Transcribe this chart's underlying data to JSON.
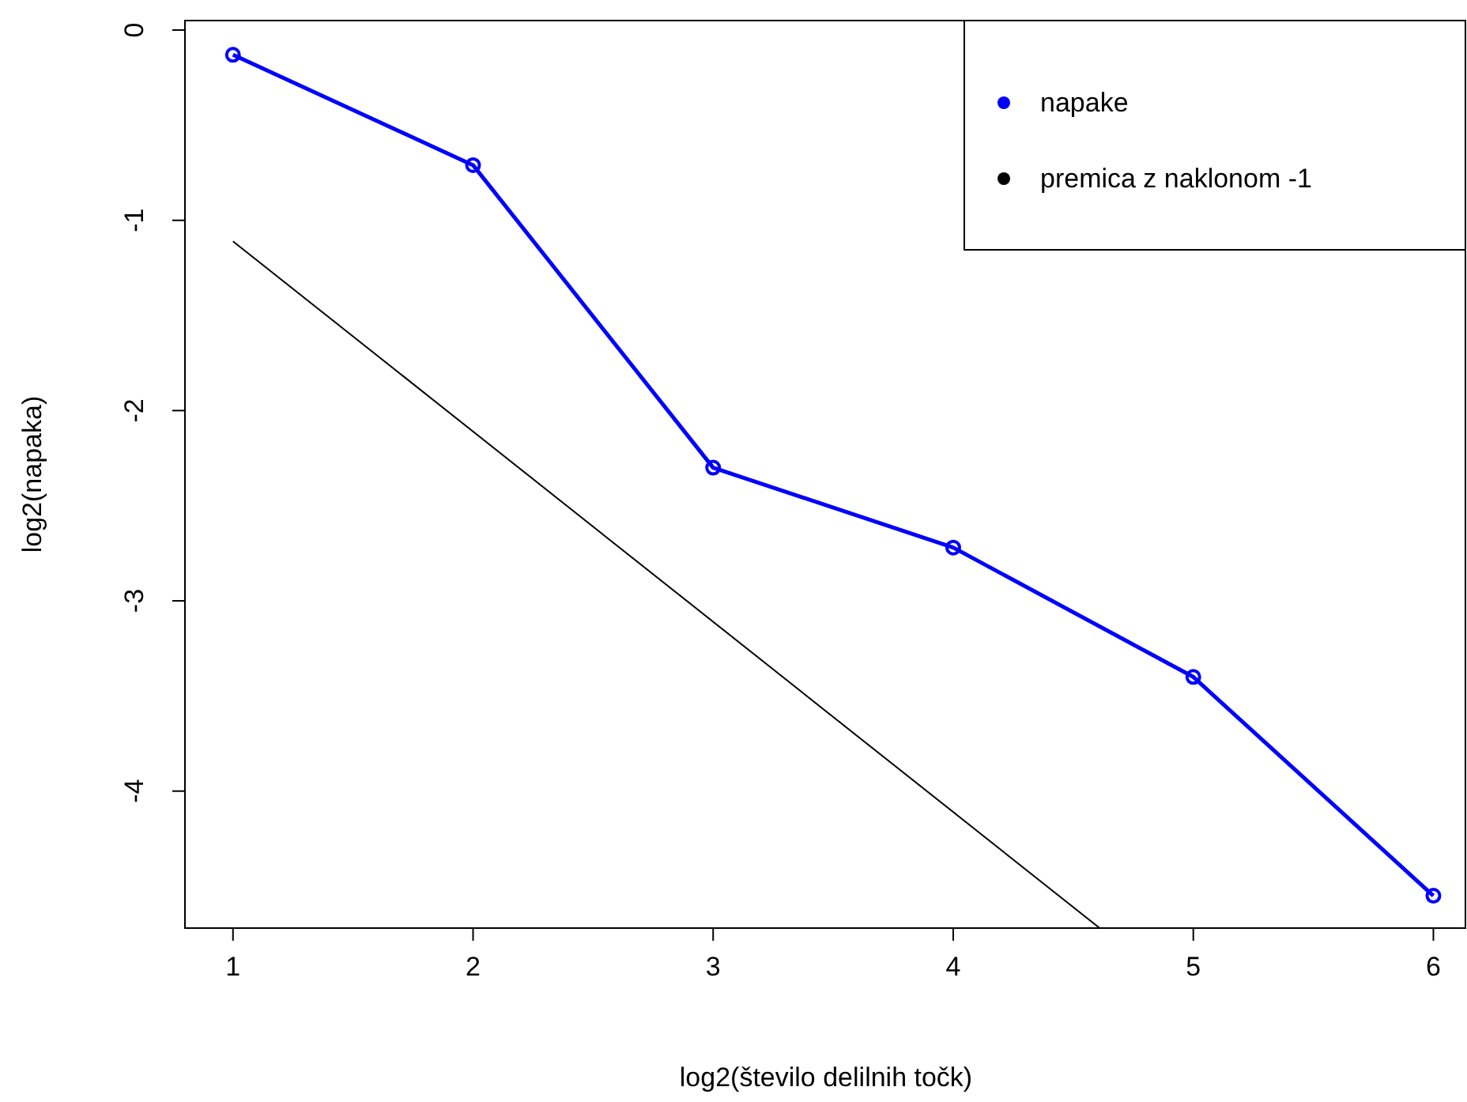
{
  "chart_data": {
    "type": "line",
    "xlabel": "log2(število delilnih točk)",
    "ylabel": "log2(napaka)",
    "xlim": [
      0.8,
      6.14
    ],
    "ylim": [
      -4.72,
      0.05
    ],
    "xticks": [
      1,
      2,
      3,
      4,
      5,
      6
    ],
    "yticks": [
      0,
      -1,
      -2,
      -3,
      -4
    ],
    "x": [
      1,
      2,
      3,
      4,
      5,
      6
    ],
    "series": [
      {
        "name": "napake",
        "color": "#0000ff",
        "values": [
          -0.13,
          -0.71,
          -2.3,
          -2.72,
          -3.4,
          -4.55
        ],
        "marker": "circle"
      },
      {
        "name": "premica z naklonom -1",
        "color": "#000000",
        "x": [
          1,
          4.61
        ],
        "values": [
          -1.11,
          -4.72
        ],
        "marker": "none"
      }
    ],
    "legend": "top right",
    "grid": false
  }
}
